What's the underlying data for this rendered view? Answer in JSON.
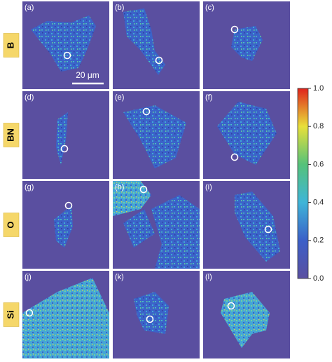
{
  "chart_data": {
    "type": "heatmap-grid",
    "panels": [
      "(a)",
      "(b)",
      "(c)",
      "(d)",
      "(e)",
      "(f)",
      "(g)",
      "(h)",
      "(i)",
      "(j)",
      "(k)",
      "(l)"
    ],
    "row_labels": [
      "B",
      "BN",
      "O",
      "Si"
    ],
    "scale_bar": "20 μm",
    "clim": [
      0,
      1
    ],
    "cticks": [
      {
        "value": 0,
        "label": "0.0"
      },
      {
        "value": 0.2,
        "label": "0.2"
      },
      {
        "value": 0.4,
        "label": "0.4"
      },
      {
        "value": 0.6,
        "label": "0.6"
      },
      {
        "value": 0.8,
        "label": "0.8"
      },
      {
        "value": 1,
        "label": "1.0"
      }
    ]
  }
}
